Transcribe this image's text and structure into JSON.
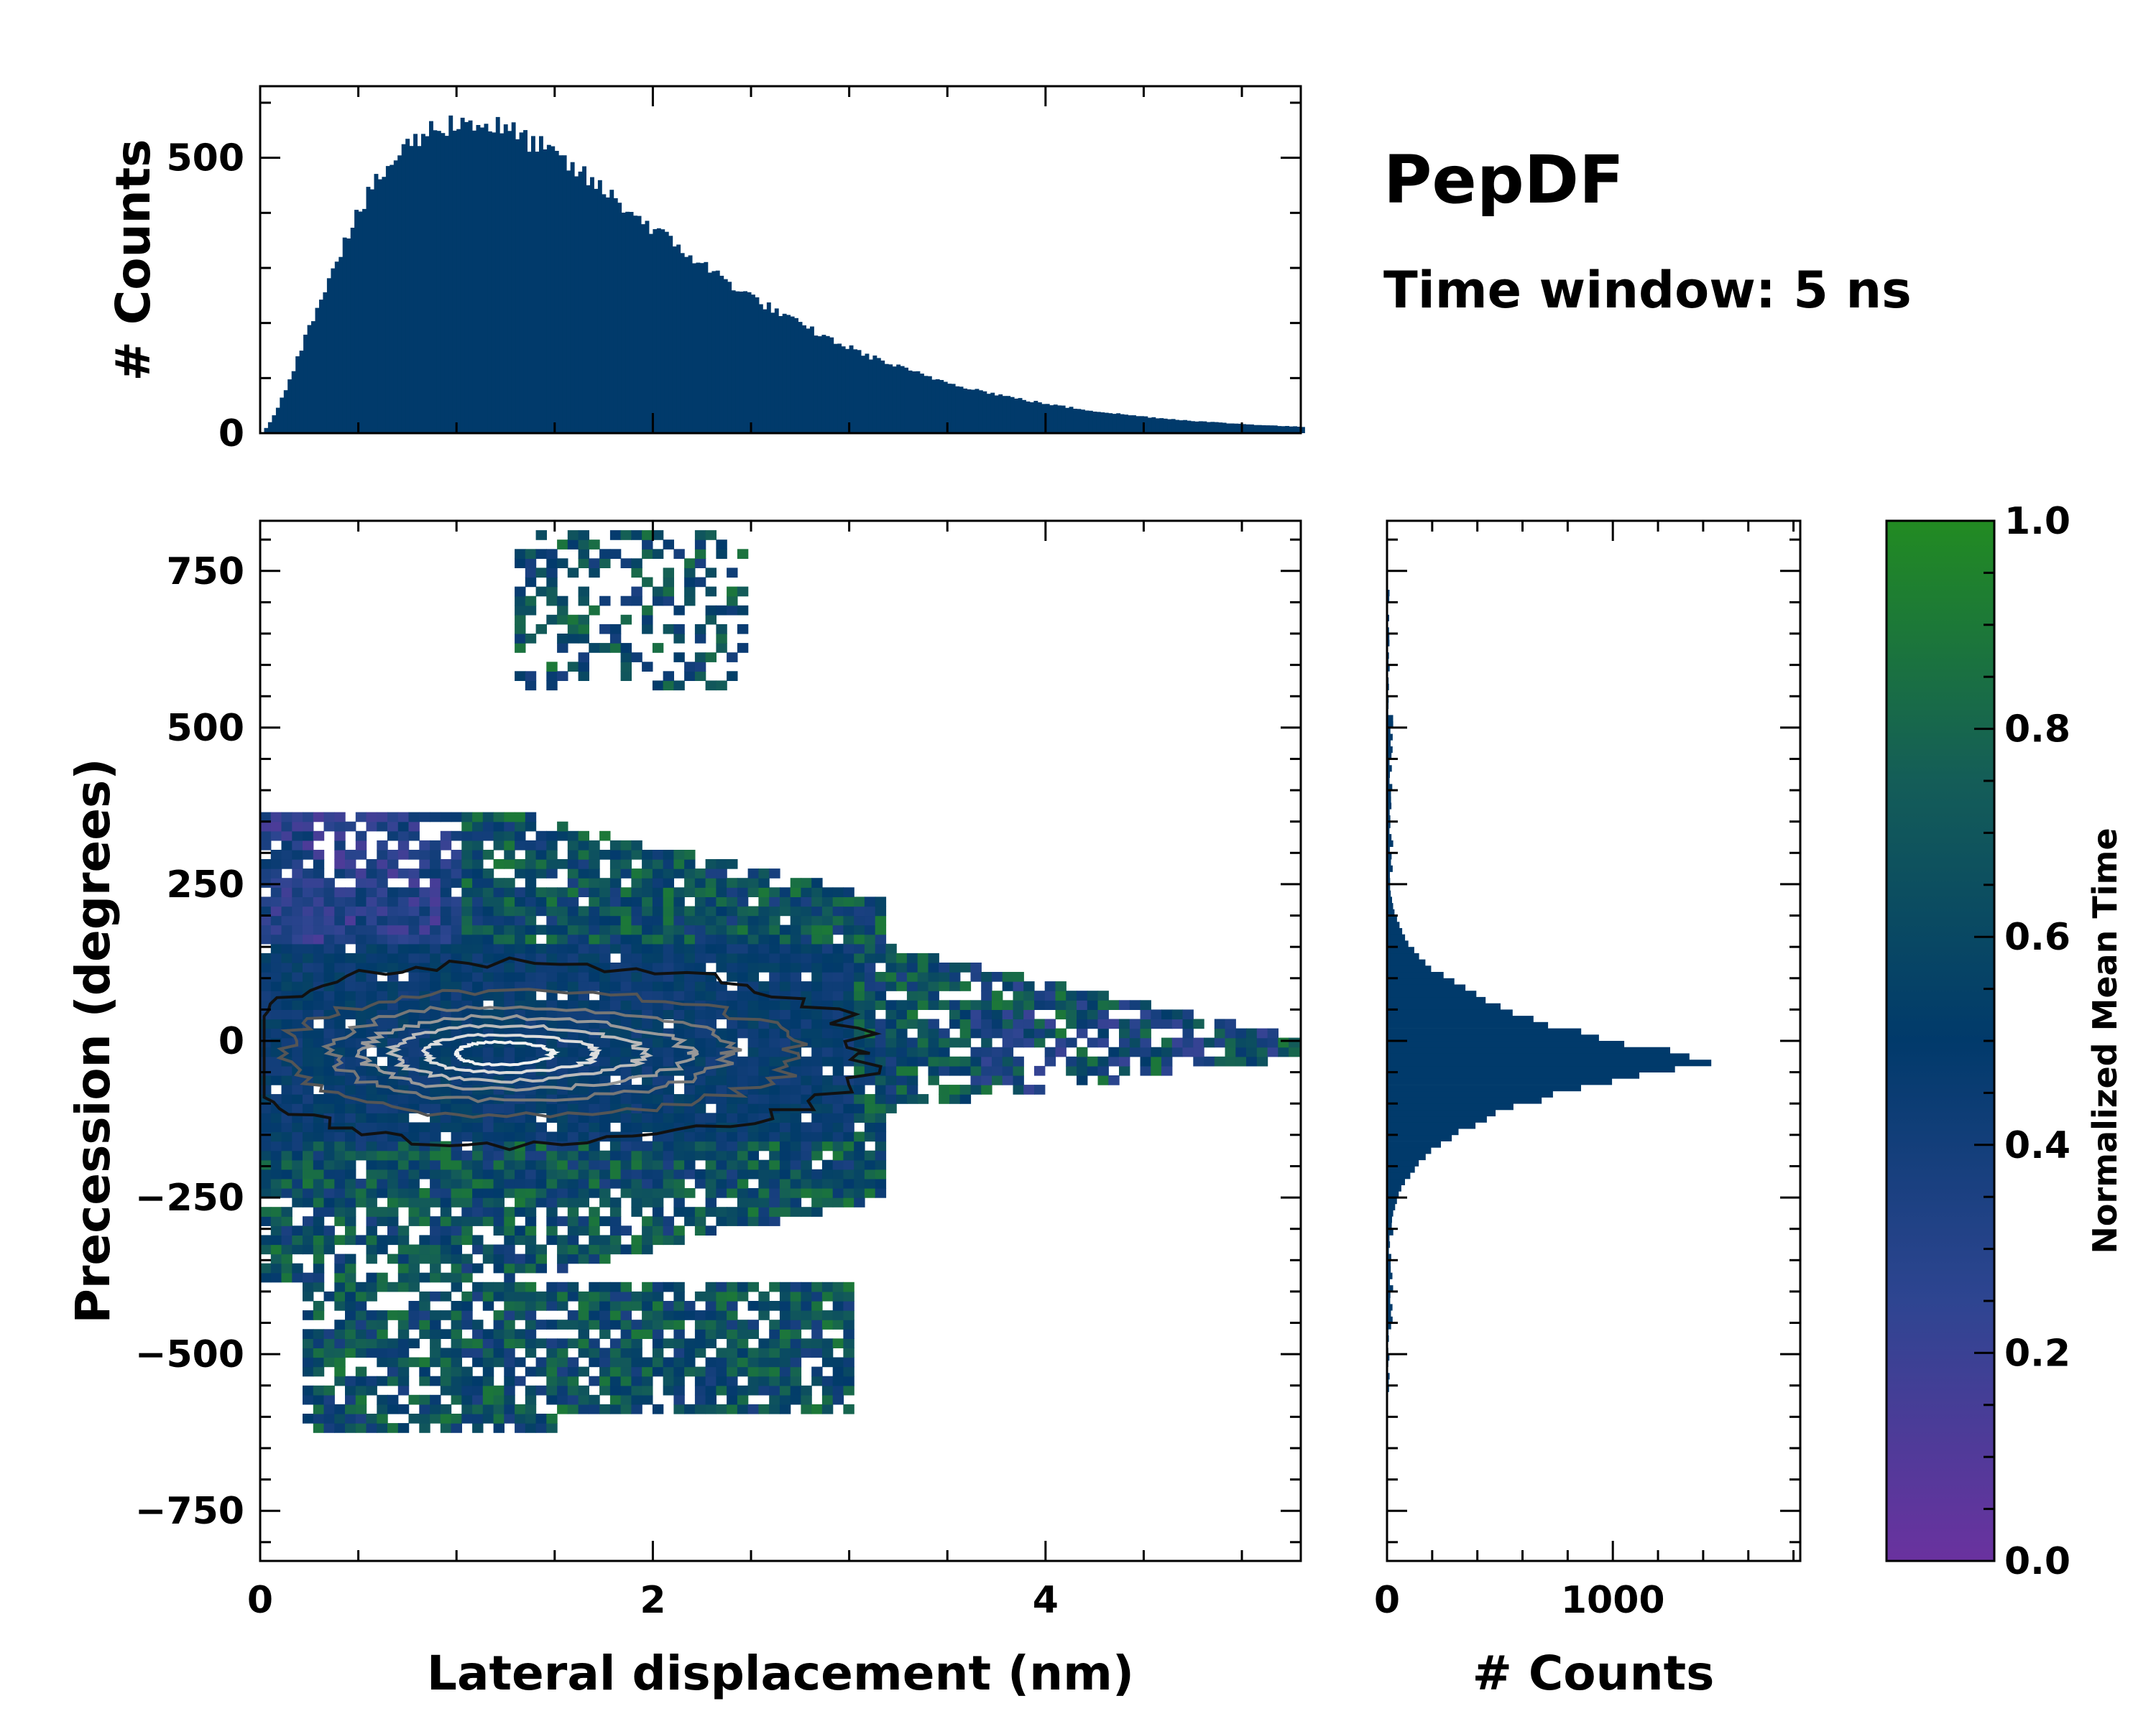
{
  "chart_data": {
    "type": "heatmap",
    "title": "PepDF",
    "subtitle": "Time window: 5 ns",
    "main": {
      "xlabel": "Lateral displacement (nm)",
      "ylabel": "Precession (degrees)",
      "xlim": [
        0,
        5.3
      ],
      "ylim": [
        -830,
        830
      ],
      "xticks": [
        0,
        2,
        4
      ],
      "xtick_labels": [
        "0",
        "2",
        "4"
      ],
      "yticks": [
        750,
        500,
        250,
        0,
        -250,
        -500,
        -750
      ],
      "ytick_labels": [
        "750",
        "500",
        "250",
        "0",
        "−250",
        "−500",
        "−750"
      ],
      "density_peak": {
        "x": 1.1,
        "y": -20
      },
      "colorbar": {
        "label": "Normalized Mean Time",
        "range": [
          0.0,
          1.0
        ],
        "ticks": [
          0.0,
          0.2,
          0.4,
          0.6,
          0.8,
          1.0
        ],
        "tick_labels": [
          "0.0",
          "0.2",
          "0.4",
          "0.6",
          "0.8",
          "1.0"
        ],
        "colors": [
          "#6a329f",
          "#2e4591",
          "#013a6b",
          "#145d58",
          "#228b22"
        ]
      }
    },
    "top_histogram": {
      "ylabel": "# Counts",
      "ylim": [
        0,
        630
      ],
      "yticks": [
        0,
        500
      ],
      "ytick_labels": [
        "0",
        "500"
      ],
      "bin_width": 0.02,
      "peak_x": 1.05,
      "peak_count": 565,
      "color": "#013a6b"
    },
    "right_histogram": {
      "xlabel": "# Counts",
      "xlim": [
        0,
        1830
      ],
      "xticks": [
        0,
        1000
      ],
      "xtick_labels": [
        "0",
        "1000"
      ],
      "bin_width": 10,
      "peak_y": -30,
      "peak_count": 1480,
      "color": "#013a6b"
    }
  }
}
